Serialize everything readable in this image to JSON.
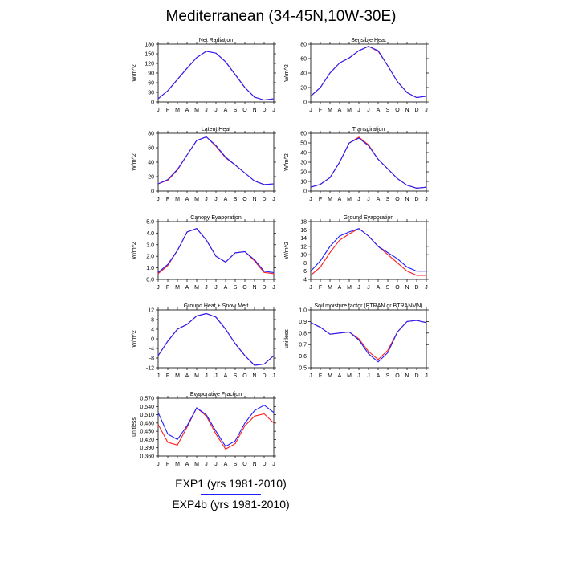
{
  "title": "Mediterranean (34-45N,10W-30E)",
  "colors": {
    "exp1": "#1f1fff",
    "exp4b": "#ff1f1f",
    "axis": "#000000"
  },
  "months": [
    "J",
    "F",
    "M",
    "A",
    "M",
    "J",
    "J",
    "A",
    "S",
    "O",
    "N",
    "D",
    "J"
  ],
  "legend": [
    {
      "name": "EXP1 (yrs 1981-2010)",
      "color": "#1f1fff"
    },
    {
      "name": "EXP4b (yrs 1981-2010)",
      "color": "#ff1f1f"
    }
  ],
  "chart_data": [
    {
      "type": "line",
      "title": "Net Radiation",
      "ylabel": "W/m^2",
      "ylim": [
        0,
        180
      ],
      "yticks": [
        "0",
        "30",
        "60",
        "90",
        "120",
        "150",
        "180"
      ],
      "series": [
        {
          "name": "EXP1 (yrs 1981-2010)",
          "values": [
            10,
            35,
            70,
            105,
            138,
            158,
            152,
            125,
            85,
            45,
            15,
            6,
            10
          ]
        },
        {
          "name": "EXP4b (yrs 1981-2010)",
          "values": [
            10,
            35,
            70,
            105,
            138,
            158,
            152,
            125,
            85,
            45,
            15,
            6,
            10
          ]
        }
      ]
    },
    {
      "type": "line",
      "title": "Sensible Heat",
      "ylabel": "W/m^2",
      "ylim": [
        0,
        80
      ],
      "yticks": [
        "0",
        "20",
        "40",
        "60",
        "80"
      ],
      "series": [
        {
          "name": "EXP1 (yrs 1981-2010)",
          "values": [
            8,
            20,
            40,
            54,
            61,
            71,
            77,
            71,
            50,
            28,
            13,
            6,
            8
          ]
        },
        {
          "name": "EXP4b (yrs 1981-2010)",
          "values": [
            8,
            20,
            40,
            54,
            61,
            71,
            77,
            70,
            50,
            28,
            13,
            6,
            8
          ]
        }
      ]
    },
    {
      "type": "line",
      "title": "Latent Heat",
      "ylabel": "W/m^2",
      "ylim": [
        0,
        80
      ],
      "yticks": [
        "0",
        "20",
        "40",
        "60",
        "80"
      ],
      "series": [
        {
          "name": "EXP1 (yrs 1981-2010)",
          "values": [
            10,
            16,
            30,
            50,
            70,
            75,
            63,
            47,
            36,
            25,
            14,
            9,
            10
          ]
        },
        {
          "name": "EXP4b (yrs 1981-2010)",
          "values": [
            10,
            15,
            29,
            50,
            70,
            75,
            62,
            46,
            36,
            25,
            14,
            9,
            10
          ]
        }
      ]
    },
    {
      "type": "line",
      "title": "Transpiration",
      "ylabel": "W/m^2",
      "ylim": [
        0,
        60
      ],
      "yticks": [
        "0",
        "10",
        "20",
        "30",
        "40",
        "50",
        "60"
      ],
      "series": [
        {
          "name": "EXP1 (yrs 1981-2010)",
          "values": [
            4,
            7,
            14,
            30,
            50,
            55,
            47,
            33,
            23,
            13,
            6,
            3,
            4
          ]
        },
        {
          "name": "EXP4b (yrs 1981-2010)",
          "values": [
            4,
            7,
            14,
            30,
            50,
            56,
            48,
            33,
            23,
            13,
            6,
            3,
            4
          ]
        }
      ]
    },
    {
      "type": "line",
      "title": "Canopy Evaporation",
      "ylabel": "W/m^2",
      "ylim": [
        0,
        5
      ],
      "yticks": [
        "0.0",
        "1.0",
        "2.0",
        "3.0",
        "4.0",
        "5.0"
      ],
      "series": [
        {
          "name": "EXP1 (yrs 1981-2010)",
          "values": [
            0.6,
            1.3,
            2.5,
            4.1,
            4.4,
            3.4,
            2.0,
            1.5,
            2.3,
            2.4,
            1.7,
            0.7,
            0.6
          ]
        },
        {
          "name": "EXP4b (yrs 1981-2010)",
          "values": [
            0.5,
            1.2,
            2.5,
            4.1,
            4.4,
            3.4,
            2.0,
            1.5,
            2.3,
            2.4,
            1.6,
            0.6,
            0.5
          ]
        }
      ]
    },
    {
      "type": "line",
      "title": "Ground Evaporation",
      "ylabel": "W/m^2",
      "ylim": [
        4,
        18
      ],
      "yticks": [
        "4",
        "6",
        "8",
        "10",
        "12",
        "14",
        "16",
        "18"
      ],
      "series": [
        {
          "name": "EXP1 (yrs 1981-2010)",
          "values": [
            6,
            8.5,
            12,
            14.5,
            15.5,
            16.3,
            14.5,
            12,
            10.5,
            9,
            7,
            6,
            6
          ]
        },
        {
          "name": "EXP4b (yrs 1981-2010)",
          "values": [
            5,
            7,
            10.5,
            13.5,
            15,
            16.3,
            14.5,
            12,
            10,
            8,
            6,
            5,
            5
          ]
        }
      ]
    },
    {
      "type": "line",
      "title": "Ground Heat + Snow Melt",
      "ylabel": "W/m^2",
      "ylim": [
        -12,
        12
      ],
      "yticks": [
        "-12",
        "-8",
        "-4",
        "0",
        "4",
        "8",
        "12"
      ],
      "series": [
        {
          "name": "EXP1 (yrs 1981-2010)",
          "values": [
            -7,
            -1,
            4,
            6,
            9.5,
            10.5,
            9,
            4,
            -2,
            -7,
            -11,
            -10.5,
            -7
          ]
        },
        {
          "name": "EXP4b (yrs 1981-2010)",
          "values": [
            -7,
            -1,
            4,
            6,
            9.5,
            10.5,
            9,
            4,
            -2,
            -7,
            -11,
            -10.5,
            -7
          ]
        }
      ]
    },
    {
      "type": "line",
      "title": "Soil moisture factor (BTRAN or BTRANMN)",
      "ylabel": "unitless",
      "ylim": [
        0.5,
        1.0
      ],
      "yticks": [
        "0.5",
        "0.6",
        "0.7",
        "0.8",
        "0.9",
        "1.0"
      ],
      "series": [
        {
          "name": "EXP1 (yrs 1981-2010)",
          "values": [
            0.89,
            0.85,
            0.79,
            0.8,
            0.81,
            0.74,
            0.62,
            0.55,
            0.63,
            0.81,
            0.9,
            0.91,
            0.89
          ]
        },
        {
          "name": "EXP4b (yrs 1981-2010)",
          "values": [
            0.89,
            0.85,
            0.79,
            0.8,
            0.81,
            0.75,
            0.64,
            0.57,
            0.65,
            0.81,
            0.9,
            0.91,
            0.89
          ]
        }
      ]
    },
    {
      "type": "line",
      "title": "Evaporative Fraction",
      "ylabel": "unitless",
      "ylim": [
        0.36,
        0.57
      ],
      "yticks": [
        "0.360",
        "0.390",
        "0.420",
        "0.450",
        "0.480",
        "0.510",
        "0.540",
        "0.570"
      ],
      "series": [
        {
          "name": "EXP1 (yrs 1981-2010)",
          "values": [
            0.518,
            0.44,
            0.42,
            0.47,
            0.535,
            0.51,
            0.45,
            0.395,
            0.415,
            0.48,
            0.525,
            0.545,
            0.518
          ]
        },
        {
          "name": "EXP4b (yrs 1981-2010)",
          "values": [
            0.475,
            0.41,
            0.4,
            0.465,
            0.535,
            0.505,
            0.44,
            0.385,
            0.405,
            0.47,
            0.505,
            0.513,
            0.48
          ]
        }
      ]
    }
  ]
}
